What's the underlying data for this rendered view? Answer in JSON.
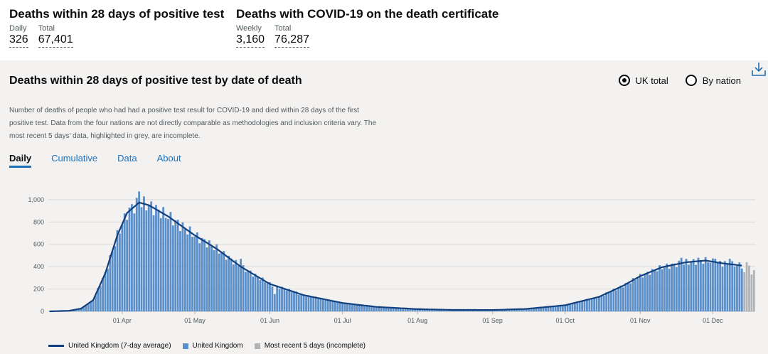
{
  "headline": {
    "test": {
      "title": "Deaths within 28 days of positive test",
      "daily_label": "Daily",
      "daily_value": "326",
      "total_label": "Total",
      "total_value": "67,401"
    },
    "certificate": {
      "title": "Deaths with COVID-19 on the death certificate",
      "weekly_label": "Weekly",
      "weekly_value": "3,160",
      "total_label": "Total",
      "total_value": "76,287"
    }
  },
  "card": {
    "title": "Deaths within 28 days of positive test by date of death",
    "radio_uk": "UK total",
    "radio_nation": "By nation",
    "selected": "uk",
    "description": "Number of deaths of people who had had a positive test result for COVID-19 and died within 28 days of the first positive test. Data from the four nations are not directly comparable as methodologies and inclusion criteria vary. The most recent 5 days' data, highlighted in grey, are incomplete.",
    "tabs": [
      "Daily",
      "Cumulative",
      "Data",
      "About"
    ],
    "active_tab": "Daily",
    "download_icon": "download-icon"
  },
  "legend": {
    "line": "United Kingdom (7-day average)",
    "bars": "United Kingdom",
    "incomplete": "Most recent 5 days (incomplete)"
  },
  "colors": {
    "bar": "#5b8fc9",
    "line": "#12407f",
    "incomplete": "#b1b4b6",
    "accent": "#1d70b8",
    "grid": "#d9d9d9"
  },
  "chart_data": {
    "type": "bar",
    "title": "Deaths within 28 days of positive test by date of death",
    "xlabel": "",
    "ylabel": "",
    "ylim": [
      0,
      1050
    ],
    "yticks": [
      0,
      200,
      400,
      600,
      800,
      1000
    ],
    "ytick_labels": [
      "0",
      "200",
      "400",
      "600",
      "800",
      "1,000"
    ],
    "xtick_labels": [
      "01 Apr",
      "01 May",
      "01 Jun",
      "01 Jul",
      "01 Aug",
      "01 Sep",
      "01 Oct",
      "01 Nov",
      "01 Dec"
    ],
    "xtick_dates": [
      "2020-04-01",
      "2020-05-01",
      "2020-06-01",
      "2020-07-01",
      "2020-08-01",
      "2020-09-01",
      "2020-10-01",
      "2020-11-01",
      "2020-12-01"
    ],
    "date_start": "2020-03-02",
    "date_end": "2020-12-18",
    "series_keypoints": [
      [
        "2020-03-02",
        0
      ],
      [
        "2020-03-10",
        5
      ],
      [
        "2020-03-15",
        25
      ],
      [
        "2020-03-20",
        100
      ],
      [
        "2020-03-25",
        340
      ],
      [
        "2020-03-30",
        680
      ],
      [
        "2020-04-03",
        880
      ],
      [
        "2020-04-08",
        975
      ],
      [
        "2020-04-12",
        950
      ],
      [
        "2020-04-20",
        850
      ],
      [
        "2020-05-01",
        680
      ],
      [
        "2020-05-10",
        560
      ],
      [
        "2020-05-20",
        400
      ],
      [
        "2020-06-01",
        245
      ],
      [
        "2020-06-15",
        145
      ],
      [
        "2020-07-01",
        75
      ],
      [
        "2020-07-15",
        40
      ],
      [
        "2020-08-01",
        20
      ],
      [
        "2020-08-15",
        13
      ],
      [
        "2020-09-01",
        12
      ],
      [
        "2020-09-15",
        22
      ],
      [
        "2020-10-01",
        55
      ],
      [
        "2020-10-15",
        130
      ],
      [
        "2020-10-25",
        230
      ],
      [
        "2020-11-01",
        315
      ],
      [
        "2020-11-10",
        395
      ],
      [
        "2020-11-20",
        440
      ],
      [
        "2020-11-28",
        455
      ],
      [
        "2020-12-05",
        430
      ],
      [
        "2020-12-13",
        410
      ]
    ],
    "highlight_bars": [
      [
        "2020-04-08",
        1073
      ],
      [
        "2020-04-05",
        960
      ],
      [
        "2020-05-20",
        470
      ],
      [
        "2020-06-03",
        155
      ],
      [
        "2020-11-18",
        480
      ],
      [
        "2020-11-25",
        480
      ],
      [
        "2020-12-02",
        470
      ],
      [
        "2020-12-08",
        470
      ]
    ],
    "incomplete_days": [
      [
        "2020-12-14",
        350
      ],
      [
        "2020-12-15",
        440
      ],
      [
        "2020-12-16",
        410
      ],
      [
        "2020-12-17",
        330
      ],
      [
        "2020-12-18",
        370
      ]
    ],
    "series": [
      {
        "name": "United Kingdom (7-day average)",
        "kind": "line"
      },
      {
        "name": "United Kingdom",
        "kind": "bar"
      },
      {
        "name": "Most recent 5 days (incomplete)",
        "kind": "bar"
      }
    ]
  }
}
